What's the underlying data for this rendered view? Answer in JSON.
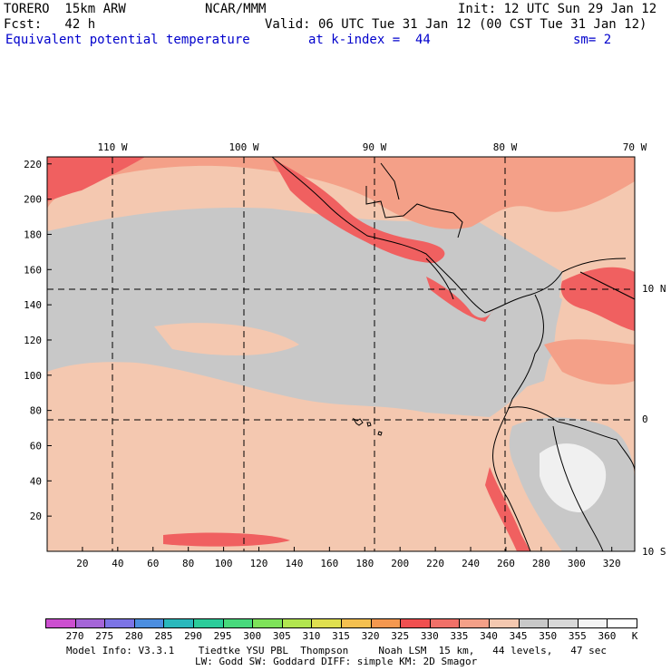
{
  "header": {
    "model": "TORERO  15km ARW",
    "org": "NCAR/MMM",
    "init": "Init: 12 UTC Sun 29 Jan 12",
    "fcst": "Fcst:   42 h",
    "valid": "Valid: 06 UTC Tue 31 Jan 12 (00 CST Tue 31 Jan 12)",
    "field": "Equivalent potential temperature",
    "level": "at k-index =  44",
    "smooth": "sm= 2"
  },
  "map": {
    "lon_labels": [
      "110 W",
      "100 W",
      "90 W",
      "80 W",
      "70 W"
    ],
    "lat_labels": [
      "10 N",
      "0",
      "10 S"
    ],
    "x_ticks": [
      "20",
      "40",
      "60",
      "80",
      "100",
      "120",
      "140",
      "160",
      "180",
      "200",
      "220",
      "240",
      "260",
      "280",
      "300",
      "320"
    ],
    "y_ticks": [
      "220",
      "200",
      "180",
      "160",
      "140",
      "120",
      "100",
      "80",
      "60",
      "40",
      "20"
    ]
  },
  "colorbar": {
    "labels": [
      "270",
      "275",
      "280",
      "285",
      "290",
      "295",
      "300",
      "305",
      "310",
      "315",
      "320",
      "325",
      "330",
      "335",
      "340",
      "345",
      "350",
      "355",
      "360"
    ],
    "unit": "K",
    "colors": [
      "#cc4fd0",
      "#a565d8",
      "#7c74e6",
      "#4c8ee0",
      "#2ab8bc",
      "#2ccc9a",
      "#48d97c",
      "#7ee25a",
      "#b2e650",
      "#e0e050",
      "#f4c050",
      "#f49850",
      "#f05050",
      "#f07068",
      "#f4a088",
      "#f4c8b0",
      "#c8c8c8",
      "#d8d8d8",
      "#f4f4f4",
      "#ffffff"
    ]
  },
  "footer": {
    "line1": "Model Info: V3.3.1    Tiedtke YSU PBL  Thompson     Noah LSM  15 km,   44 levels,   47 sec",
    "line2": "LW: Godd SW: Goddard DIFF: simple KM: 2D Smagor"
  }
}
